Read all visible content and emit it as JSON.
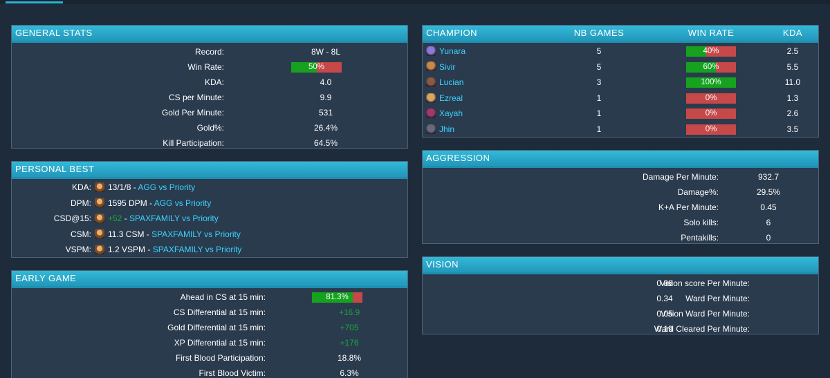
{
  "general_stats": {
    "title": "GENERAL STATS",
    "rows": [
      {
        "label": "Record:",
        "value": "8W - 8L"
      },
      {
        "label": "Win Rate:",
        "value": "50%",
        "bar": 0.5
      },
      {
        "label": "KDA:",
        "value": "4.0"
      },
      {
        "label": "CS per Minute:",
        "value": "9.9"
      },
      {
        "label": "Gold Per Minute:",
        "value": "531"
      },
      {
        "label": "Gold%:",
        "value": "26.4%"
      },
      {
        "label": "Kill Participation:",
        "value": "64.5%"
      }
    ]
  },
  "personal_best": {
    "title": "PERSONAL BEST",
    "rows": [
      {
        "label": "KDA:",
        "stat": "13/1/8",
        "sep": " - ",
        "match": "AGG vs Priority"
      },
      {
        "label": "DPM:",
        "stat": "1595 DPM",
        "sep": " - ",
        "match": "AGG vs Priority"
      },
      {
        "label": "CSD@15:",
        "stat": "+52",
        "sep": " - ",
        "match": "SPAXFAMILY vs Priority",
        "stat_green": true
      },
      {
        "label": "CSM:",
        "stat": "11.3 CSM",
        "sep": " - ",
        "match": "SPAXFAMILY vs Priority"
      },
      {
        "label": "VSPM:",
        "stat": "1.2 VSPM",
        "sep": " - ",
        "match": "SPAXFAMILY vs Priority"
      }
    ]
  },
  "early_game": {
    "title": "EARLY GAME",
    "rows": [
      {
        "label": "Ahead in CS at 15 min:",
        "value": "81.3%",
        "bar": 0.813
      },
      {
        "label": "CS Differential at 15 min:",
        "value": "+16.9",
        "green": true
      },
      {
        "label": "Gold Differential at 15 min:",
        "value": "+705",
        "green": true
      },
      {
        "label": "XP Differential at 15 min:",
        "value": "+176",
        "green": true
      },
      {
        "label": "First Blood Participation:",
        "value": "18.8%"
      },
      {
        "label": "First Blood Victim:",
        "value": "6.3%"
      }
    ]
  },
  "champions": {
    "headers": {
      "champion": "CHAMPION",
      "games": "NB GAMES",
      "winrate": "WIN RATE",
      "kda": "KDA"
    },
    "rows": [
      {
        "name": "Yunara",
        "games": "5",
        "winrate": "40%",
        "wr": 0.4,
        "kda": "2.5",
        "icon": "yunara-icon",
        "color": "#8a7bd8"
      },
      {
        "name": "Sivir",
        "games": "5",
        "winrate": "60%",
        "wr": 0.6,
        "kda": "5.5",
        "icon": "sivir-icon",
        "color": "#c88a4a"
      },
      {
        "name": "Lucian",
        "games": "3",
        "winrate": "100%",
        "wr": 1.0,
        "kda": "11.0",
        "icon": "lucian-icon",
        "color": "#8a5a44"
      },
      {
        "name": "Ezreal",
        "games": "1",
        "winrate": "0%",
        "wr": 0.0,
        "kda": "1.3",
        "icon": "ezreal-icon",
        "color": "#d8a860"
      },
      {
        "name": "Xayah",
        "games": "1",
        "winrate": "0%",
        "wr": 0.0,
        "kda": "2.6",
        "icon": "xayah-icon",
        "color": "#a03a6a"
      },
      {
        "name": "Jhin",
        "games": "1",
        "winrate": "0%",
        "wr": 0.0,
        "kda": "3.5",
        "icon": "jhin-icon",
        "color": "#6a6a7a"
      }
    ]
  },
  "aggression": {
    "title": "AGGRESSION",
    "rows": [
      {
        "label": "Damage Per Minute:",
        "value": "932.7"
      },
      {
        "label": "Damage%:",
        "value": "29.5%"
      },
      {
        "label": "K+A Per Minute:",
        "value": "0.45"
      },
      {
        "label": "Solo kills:",
        "value": "6"
      },
      {
        "label": "Pentakills:",
        "value": "0"
      }
    ]
  },
  "vision": {
    "title": "VISION",
    "rows": [
      {
        "label": "Vision score Per Minute:",
        "value": "0.88"
      },
      {
        "label": "Ward Per Minute:",
        "value": "0.34"
      },
      {
        "label": "Vision Ward Per Minute:",
        "value": "0.05"
      },
      {
        "label": "Ward Cleared Per Minute:",
        "value": "0.19"
      }
    ]
  },
  "colors": {
    "accent": "#28b4d6",
    "win": "#16a21e",
    "loss": "#c64848",
    "link": "#3ad3ff"
  }
}
